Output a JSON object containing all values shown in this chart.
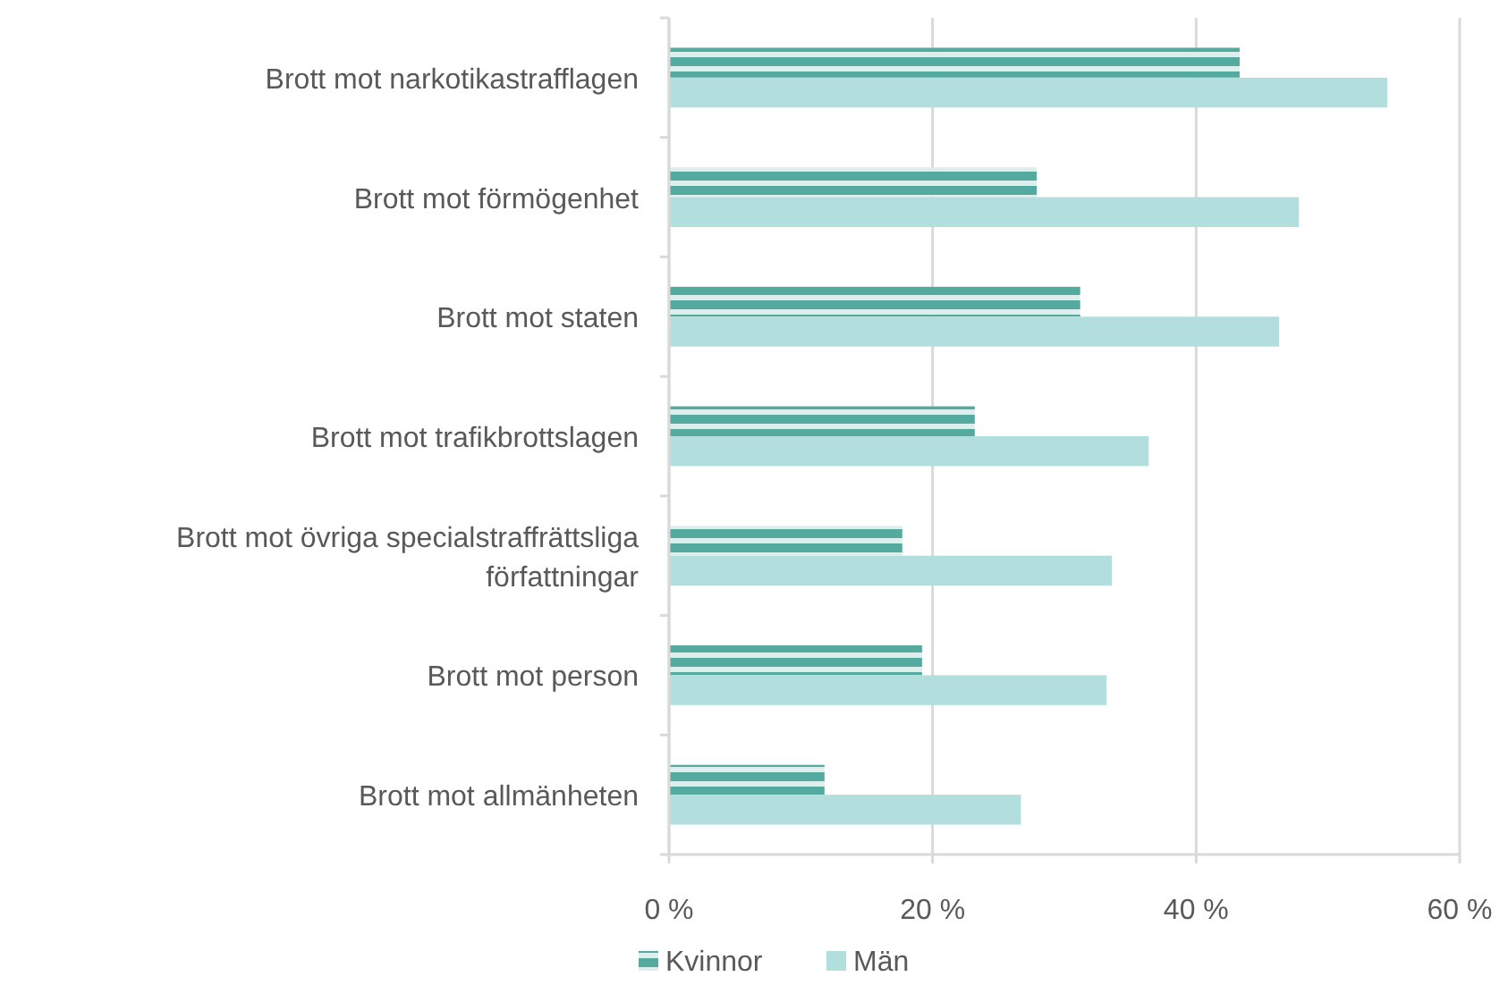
{
  "chart_data": {
    "type": "bar",
    "orientation": "horizontal",
    "categories": [
      "Brott mot narkotikastrafflagen",
      "Brott mot förmögenhet",
      "Brott mot staten",
      "Brott mot trafikbrottslagen",
      "Brott mot övriga specialstraffrättsliga författningar",
      "Brott mot person",
      "Brott mot allmänheten"
    ],
    "series": [
      {
        "name": "Kvinnor",
        "color": "#55aaa0",
        "values": [
          43.3,
          27.9,
          31.2,
          23.2,
          17.7,
          19.2,
          11.8
        ]
      },
      {
        "name": "Män",
        "color": "#b2dfdd",
        "values": [
          54.5,
          47.8,
          46.3,
          36.4,
          33.6,
          33.2,
          26.7
        ]
      }
    ],
    "xlim": [
      0,
      60
    ],
    "xticks": [
      {
        "value": 0,
        "label": "0 %"
      },
      {
        "value": 20,
        "label": "20 %"
      },
      {
        "value": 40,
        "label": "40 %"
      },
      {
        "value": 60,
        "label": "60 %"
      }
    ],
    "grid": "x",
    "legend": "bottom"
  }
}
